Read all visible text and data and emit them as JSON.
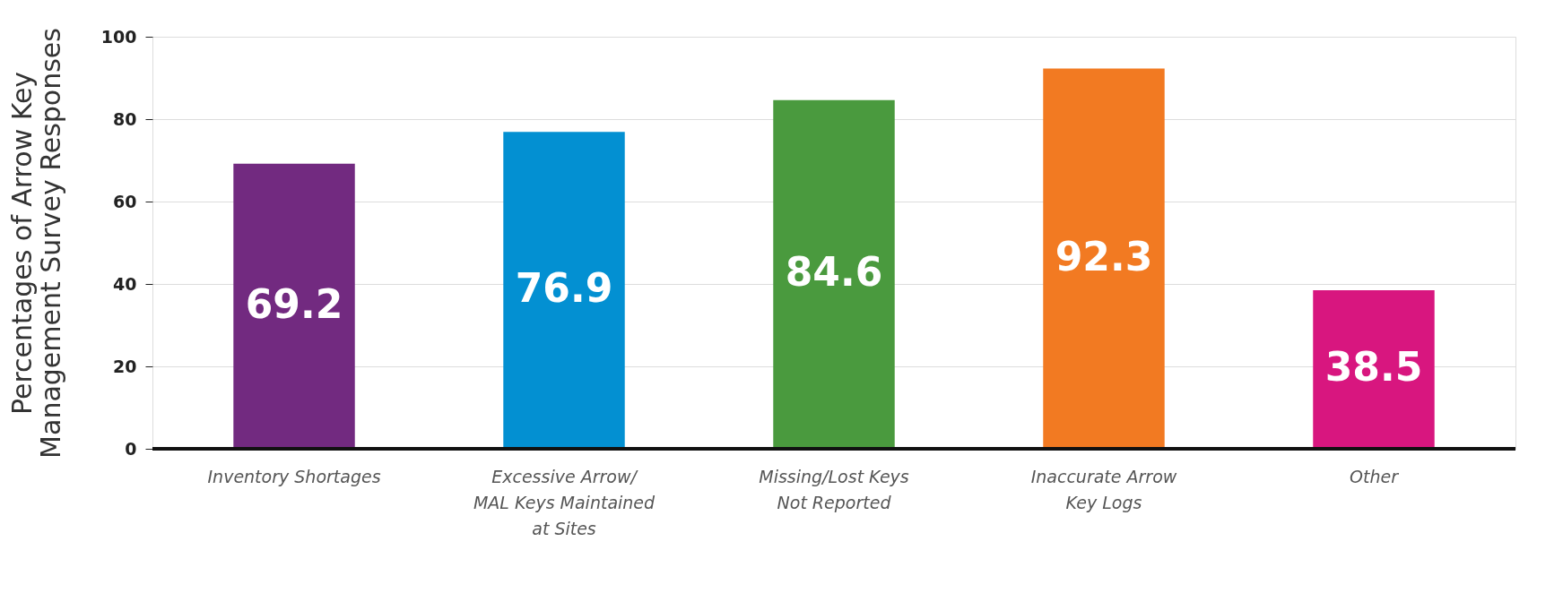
{
  "chart_data": {
    "type": "bar",
    "ylabel": "Percentages of Arrow Key\nManagement Survey Responses",
    "categories": [
      "Inventory Shortages",
      "Excessive Arrow/\nMAL Keys Maintained\nat Sites",
      "Missing/Lost Keys\nNot Reported",
      "Inaccurate Arrow\nKey Logs",
      "Other"
    ],
    "values": [
      69.2,
      76.9,
      84.6,
      92.3,
      38.5
    ],
    "colors": [
      "#722a80",
      "#0390d2",
      "#4a9a3e",
      "#f27a22",
      "#d8167f"
    ],
    "ylim": [
      0,
      100
    ],
    "yticks": [
      0,
      20,
      40,
      60,
      80,
      100
    ],
    "grid": "y",
    "data_labels": true
  }
}
